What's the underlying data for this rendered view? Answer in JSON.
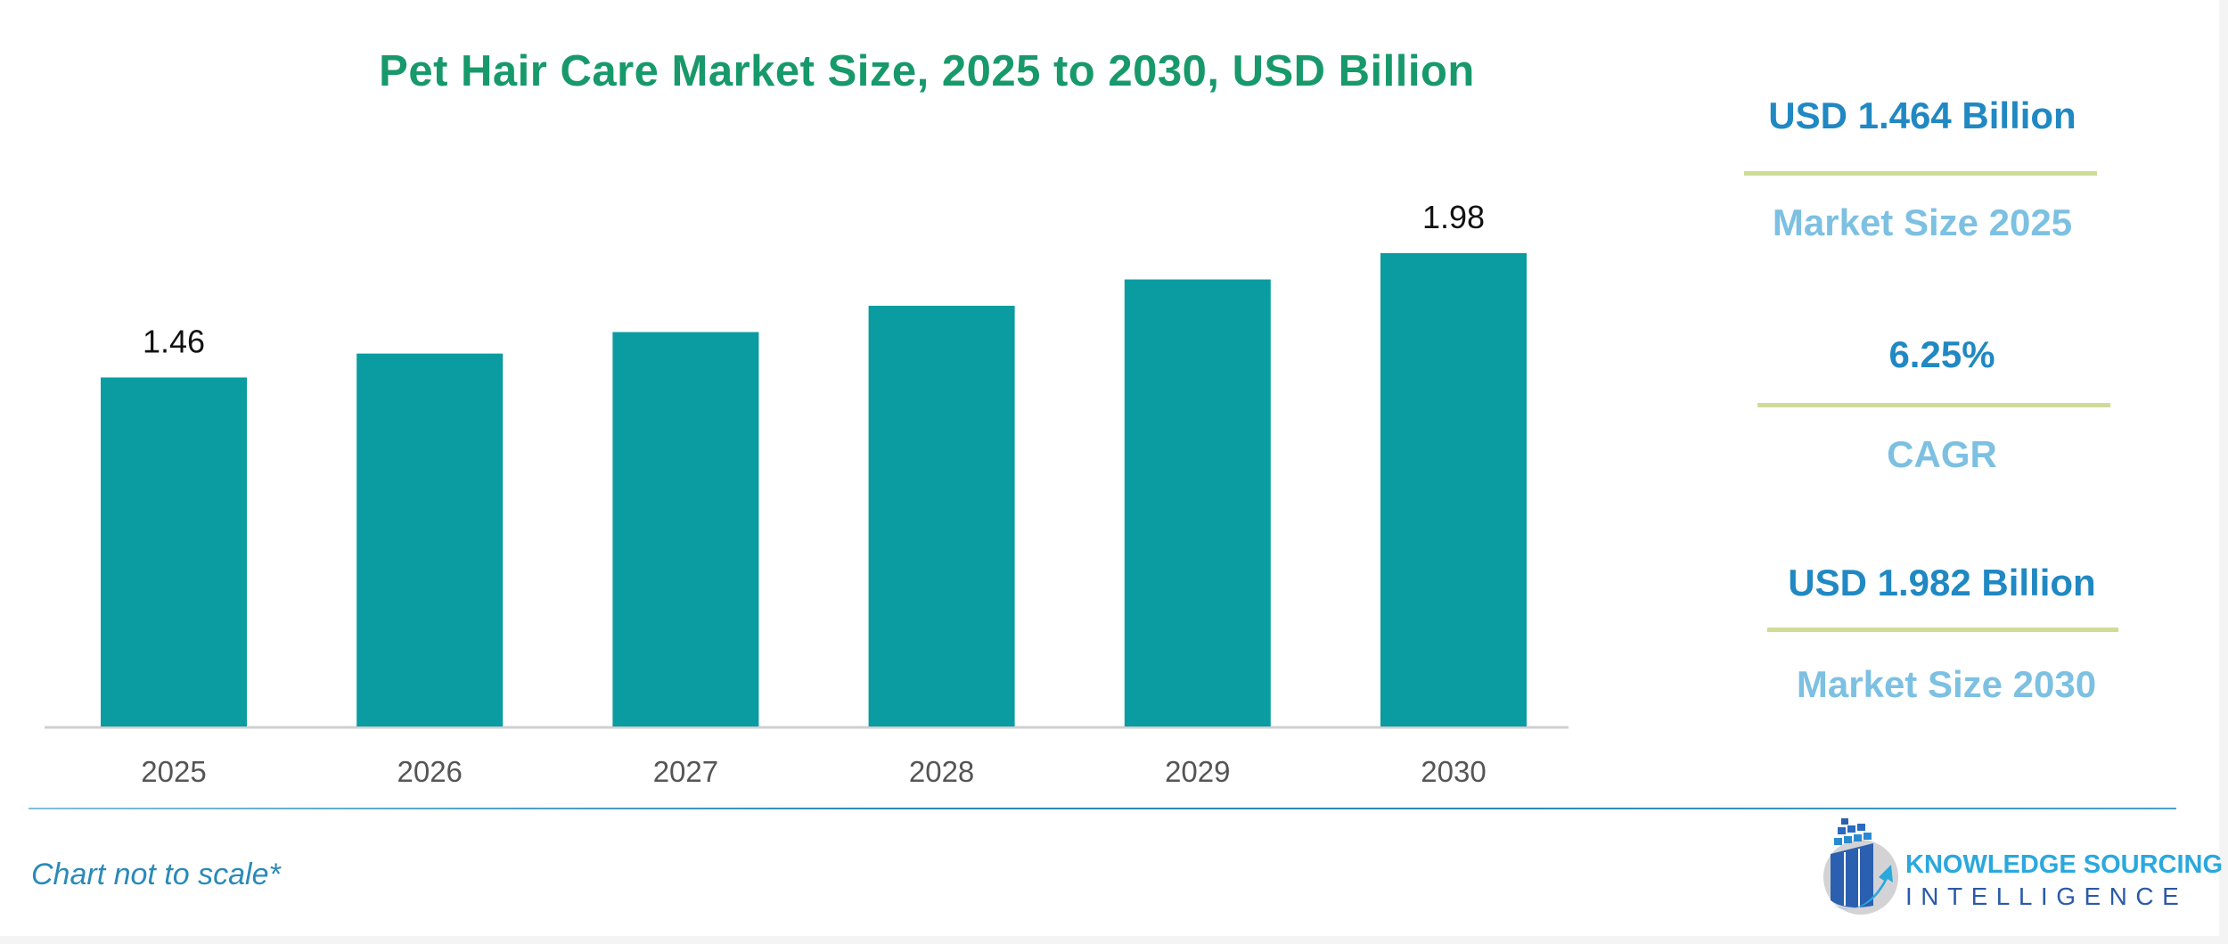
{
  "chart_data": {
    "type": "bar",
    "title": "Pet Hair Care Market Size, 2025 to 2030, USD Billion",
    "categories": [
      "2025",
      "2026",
      "2027",
      "2028",
      "2029",
      "2030"
    ],
    "values": [
      1.46,
      1.56,
      1.65,
      1.76,
      1.87,
      1.98
    ],
    "data_labels": {
      "0": "1.46",
      "5": "1.98"
    },
    "ylim": [
      0,
      1.98
    ],
    "grid": false,
    "bar_color": "#0a9ca0",
    "xlabel": "",
    "ylabel": ""
  },
  "stats": [
    {
      "value": "USD 1.464 Billion",
      "label": "Market Size 2025"
    },
    {
      "value": "6.25%",
      "label": "CAGR"
    },
    {
      "value": "USD 1.982 Billion",
      "label": "Market Size 2030"
    }
  ],
  "footnote": "Chart not to scale*",
  "logo": {
    "line1": "KNOWLEDGE SOURCING",
    "line2": "INTELLIGENCE"
  },
  "colors": {
    "title": "#17996b",
    "stat_value": "#2088c2",
    "stat_label": "#7cc0e2",
    "divider": "#cfdc98"
  }
}
